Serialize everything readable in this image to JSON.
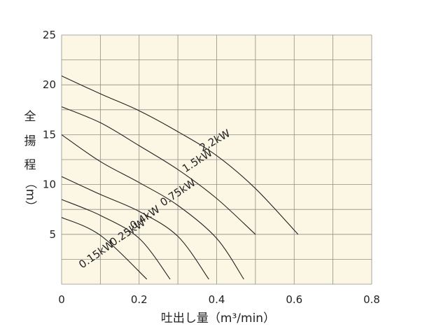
{
  "chart_data": {
    "type": "line",
    "xlabel": "吐出し量（m³/min）",
    "ylabel_chars": [
      "全",
      "揚",
      "程",
      "（m）"
    ],
    "xlim": [
      0,
      0.8
    ],
    "ylim": [
      0,
      25
    ],
    "x_ticks": [
      {
        "value": 0,
        "label": "0"
      },
      {
        "value": 0.2,
        "label": "0.2"
      },
      {
        "value": 0.4,
        "label": "0.4"
      },
      {
        "value": 0.6,
        "label": "0.6"
      },
      {
        "value": 0.8,
        "label": "0.8"
      }
    ],
    "y_ticks": [
      {
        "value": 5,
        "label": "5"
      },
      {
        "value": 10,
        "label": "10"
      },
      {
        "value": 15,
        "label": "15"
      },
      {
        "value": 20,
        "label": "20"
      },
      {
        "value": 25,
        "label": "25"
      }
    ],
    "grid": true,
    "grid_x_step": 0.1,
    "grid_y_step": 2.5,
    "colors": {
      "plot_background": "#fbf7e4",
      "grid": "#8f8f85",
      "line": "#222222",
      "text": "#222222"
    },
    "series": [
      {
        "name": "2.2kW",
        "label_pos": {
          "x": 0.4,
          "y": 14.1
        },
        "label_angle": -30,
        "points": [
          [
            0,
            20.9
          ],
          [
            0.1,
            19.1
          ],
          [
            0.2,
            17.4
          ],
          [
            0.3,
            15.3
          ],
          [
            0.4,
            12.9
          ],
          [
            0.5,
            9.6
          ],
          [
            0.61,
            5.0
          ]
        ]
      },
      {
        "name": "1.5kW",
        "label_pos": {
          "x": 0.355,
          "y": 12.1
        },
        "label_angle": -33,
        "points": [
          [
            0,
            17.8
          ],
          [
            0.1,
            16.2
          ],
          [
            0.2,
            13.9
          ],
          [
            0.3,
            11.5
          ],
          [
            0.4,
            8.6
          ],
          [
            0.5,
            5.0
          ]
        ]
      },
      {
        "name": "0.75kW",
        "label_pos": {
          "x": 0.305,
          "y": 8.9
        },
        "label_angle": -34,
        "points": [
          [
            0,
            15.0
          ],
          [
            0.1,
            12.3
          ],
          [
            0.2,
            10.2
          ],
          [
            0.3,
            7.9
          ],
          [
            0.4,
            4.6
          ],
          [
            0.47,
            0.5
          ]
        ]
      },
      {
        "name": "0.4kW",
        "label_pos": {
          "x": 0.22,
          "y": 6.4
        },
        "label_angle": -34,
        "points": [
          [
            0,
            10.8
          ],
          [
            0.1,
            9.0
          ],
          [
            0.2,
            7.3
          ],
          [
            0.3,
            4.8
          ],
          [
            0.38,
            0.5
          ]
        ]
      },
      {
        "name": "0.25kW",
        "label_pos": {
          "x": 0.175,
          "y": 4.9
        },
        "label_angle": -34,
        "points": [
          [
            0,
            8.5
          ],
          [
            0.1,
            6.9
          ],
          [
            0.2,
            4.6
          ],
          [
            0.28,
            0.5
          ]
        ]
      },
      {
        "name": "0.15kW",
        "label_pos": {
          "x": 0.095,
          "y": 2.7
        },
        "label_angle": -35,
        "points": [
          [
            0,
            6.7
          ],
          [
            0.1,
            4.9
          ],
          [
            0.22,
            0.5
          ]
        ]
      }
    ]
  }
}
